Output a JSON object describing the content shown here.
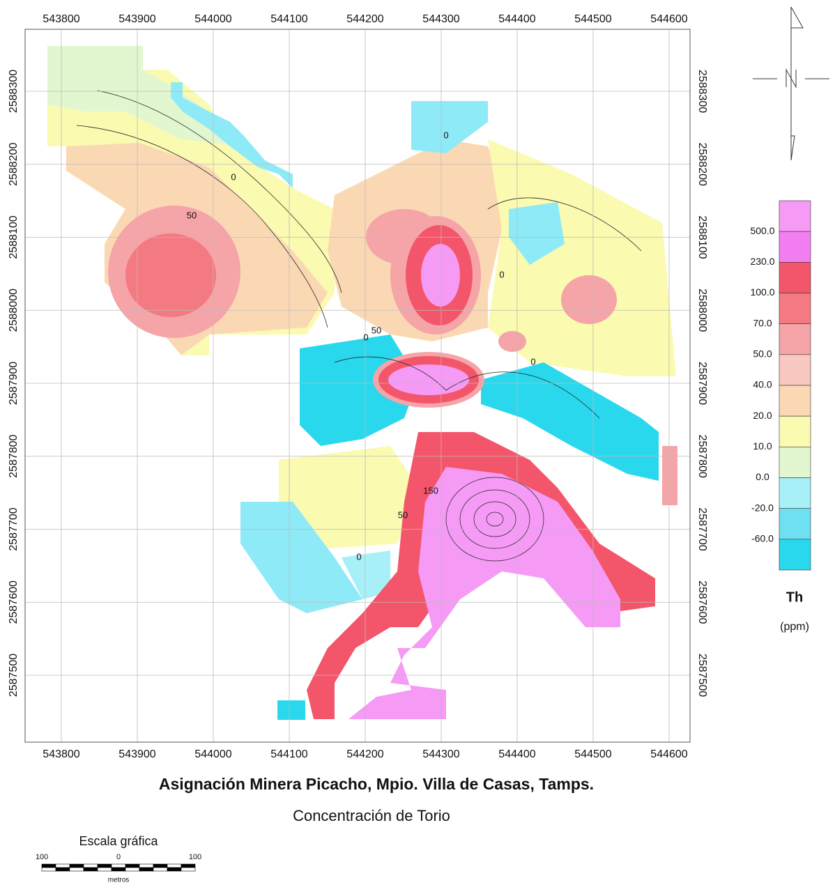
{
  "map": {
    "title": "Asignación Minera Picacho, Mpio. Villa de Casas, Tamps.",
    "subtitle": "Concentración de Torio",
    "xticks": [
      543800,
      543900,
      544000,
      544100,
      544200,
      544300,
      544400,
      544500,
      544600
    ],
    "yticks": [
      2588300,
      2588200,
      2588100,
      2588000,
      2587900,
      2587800,
      2587700,
      2587600,
      2587500
    ],
    "contour_labels": [
      "50",
      "0",
      "0",
      "50",
      "0",
      "0",
      "0",
      "150",
      "50",
      "0"
    ]
  },
  "legend": {
    "title": "Th",
    "unit": "(ppm)",
    "labels": [
      "500.0",
      "230.0",
      "100.0",
      "70.0",
      "50.0",
      "40.0",
      "20.0",
      "10.0",
      "0.0",
      "-20.0",
      "-60.0"
    ],
    "colors": [
      "#f59af5",
      "#f27ef2",
      "#f3566a",
      "#f47a82",
      "#f5a4a8",
      "#f9c8c0",
      "#fbd8b4",
      "#fafab0",
      "#e2f7cf",
      "#a8f0f7",
      "#6ee0f2",
      "#2ad8ed"
    ]
  },
  "scale": {
    "title": "Escala gráfica",
    "labels": [
      "100",
      "0",
      "100"
    ],
    "unit": "metros"
  }
}
